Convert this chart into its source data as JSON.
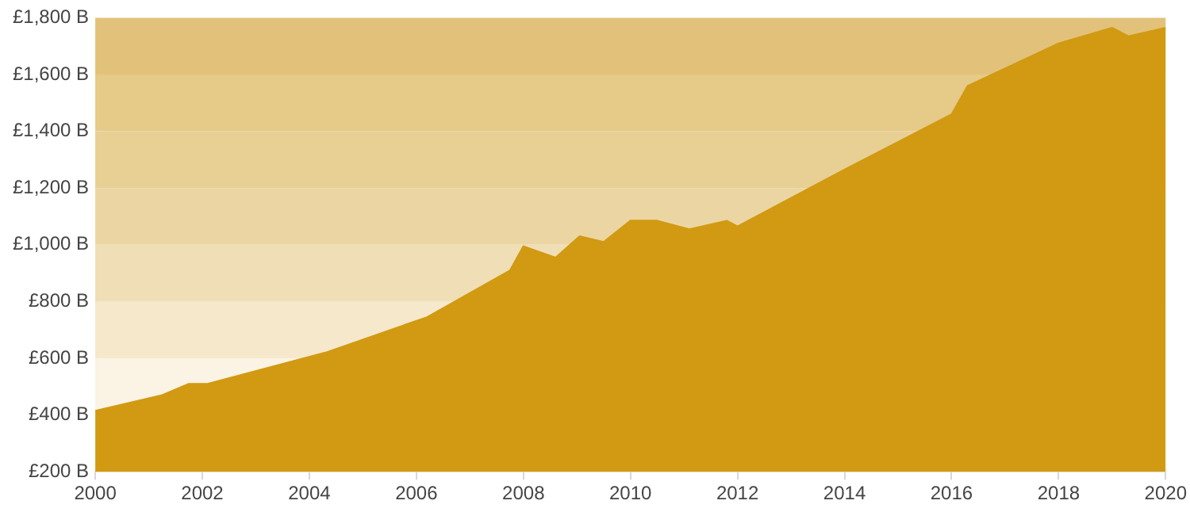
{
  "chart_data": {
    "type": "area",
    "x": [
      2000,
      2001.25,
      2001.75,
      2002.1,
      2004.3,
      2006.2,
      2007.75,
      2008,
      2008.6,
      2009.05,
      2009.5,
      2010,
      2010.5,
      2011.1,
      2011.8,
      2012,
      2014,
      2016,
      2016.3,
      2018,
      2019,
      2019.3,
      2020
    ],
    "series": [
      {
        "color": "#d19a12",
        "values": [
          415,
          470,
          510,
          510,
          620,
          745,
          910,
          995,
          955,
          1030,
          1010,
          1085,
          1085,
          1055,
          1085,
          1065,
          1265,
          1460,
          1560,
          1710,
          1765,
          1735,
          1765
        ]
      }
    ],
    "xlim": [
      2000,
      2020
    ],
    "xticks": [
      2000,
      2002,
      2004,
      2006,
      2008,
      2010,
      2012,
      2014,
      2016,
      2018,
      2020
    ],
    "ylim": [
      200,
      1800
    ],
    "yticks": [
      {
        "value": 200,
        "label": "£200 B"
      },
      {
        "value": 400,
        "label": "£400 B"
      },
      {
        "value": 600,
        "label": "£600 B"
      },
      {
        "value": 800,
        "label": "£800 B"
      },
      {
        "value": 1000,
        "label": "£1,000 B"
      },
      {
        "value": 1200,
        "label": "£1,200 B"
      },
      {
        "value": 1400,
        "label": "£1,400 B"
      },
      {
        "value": 1600,
        "label": "£1,600 B"
      },
      {
        "value": 1800,
        "label": "£1,800 B"
      }
    ],
    "bands": [
      {
        "axis": "y",
        "from": 200,
        "to": 600,
        "color": "#fbf3e3"
      },
      {
        "axis": "y",
        "from": 600,
        "to": 800,
        "color": "#f6e8cb"
      },
      {
        "axis": "y",
        "from": 800,
        "to": 1000,
        "color": "#f0deb6"
      },
      {
        "axis": "y",
        "from": 1000,
        "to": 1200,
        "color": "#ebd6a3"
      },
      {
        "axis": "y",
        "from": 1200,
        "to": 1400,
        "color": "#e8d095"
      },
      {
        "axis": "y",
        "from": 1400,
        "to": 1600,
        "color": "#e5ca88"
      },
      {
        "axis": "y",
        "from": 1600,
        "to": 1800,
        "color": "#e2c27a"
      }
    ],
    "grid": false,
    "legend": false
  }
}
